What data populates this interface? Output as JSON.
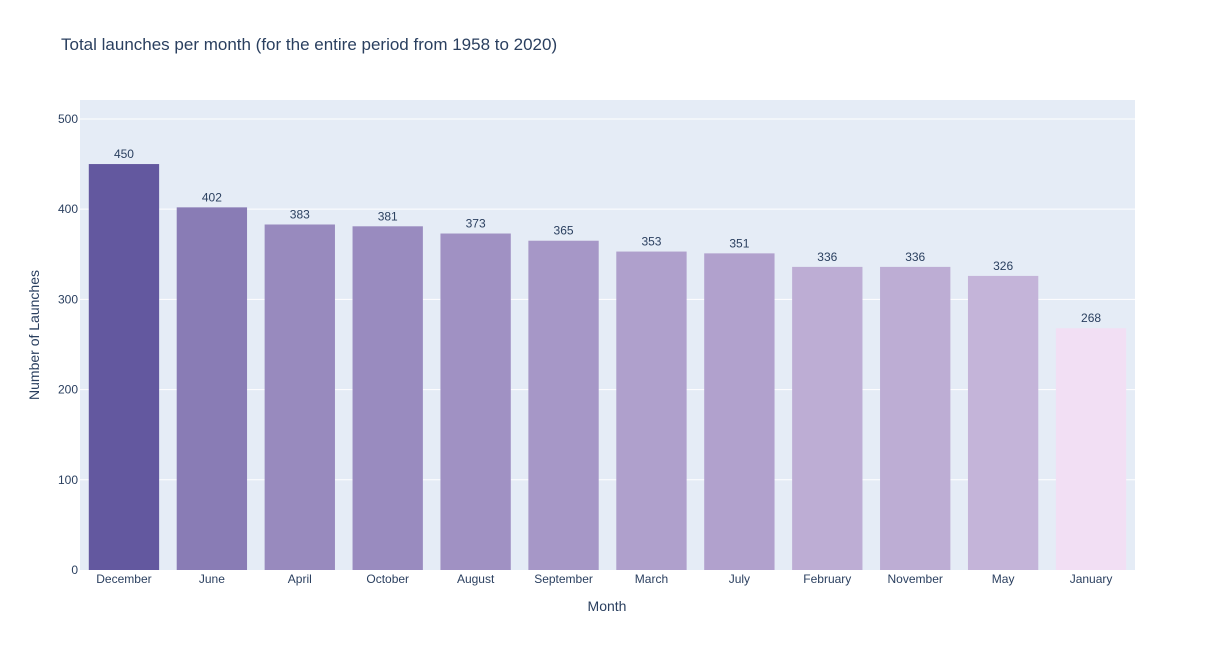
{
  "chart_data": {
    "type": "bar",
    "title": "Total launches per month (for the entire period from 1958 to 2020)",
    "xlabel": "Month",
    "ylabel": "Number of Launches",
    "categories": [
      "December",
      "June",
      "April",
      "October",
      "August",
      "September",
      "March",
      "July",
      "February",
      "November",
      "May",
      "January"
    ],
    "values": [
      450,
      402,
      383,
      381,
      373,
      365,
      353,
      351,
      336,
      336,
      326,
      268
    ],
    "ylim": [
      0,
      521
    ],
    "yticks": [
      0,
      100,
      200,
      300,
      400,
      500
    ],
    "grid": true,
    "colorscale": {
      "low_value": 268,
      "high_value": 450,
      "low_color": "#f2dff4",
      "high_color": "#63589f"
    },
    "plot_background": "#e5ecf6",
    "gridline_color": "#ffffff",
    "text_color": "#2a3f5f"
  }
}
